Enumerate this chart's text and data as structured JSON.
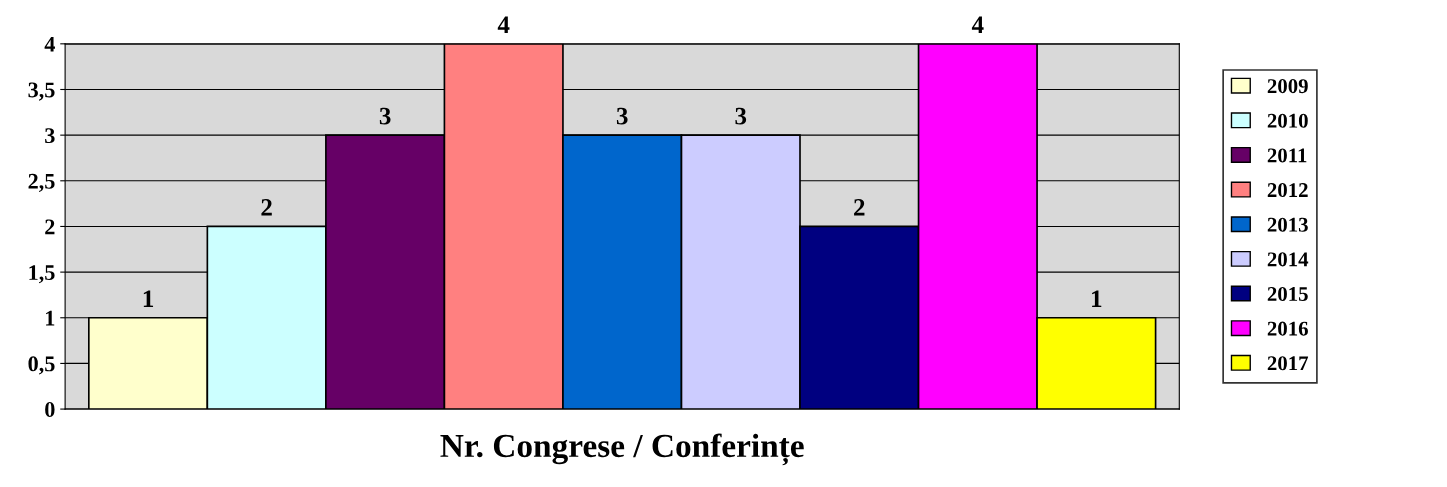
{
  "chart_data": {
    "type": "bar",
    "xlabel": "Nr. Congrese / Conferințe",
    "categories": [
      null
    ],
    "series": [
      {
        "name": "2009",
        "color": "#ffffcc",
        "values": [
          1
        ]
      },
      {
        "name": "2010",
        "color": "#ccffff",
        "values": [
          2
        ]
      },
      {
        "name": "2011",
        "color": "#660066",
        "values": [
          3
        ]
      },
      {
        "name": "2012",
        "color": "#ff8080",
        "values": [
          4
        ]
      },
      {
        "name": "2013",
        "color": "#0066cc",
        "values": [
          3
        ]
      },
      {
        "name": "2014",
        "color": "#ccccff",
        "values": [
          3
        ]
      },
      {
        "name": "2015",
        "color": "#000080",
        "values": [
          2
        ]
      },
      {
        "name": "2016",
        "color": "#ff00ff",
        "values": [
          4
        ]
      },
      {
        "name": "2017",
        "color": "#ffff00",
        "values": [
          1
        ]
      }
    ],
    "ylim": [
      0,
      4
    ],
    "yticks": [
      0,
      {
        "value": 0.5,
        "label": "0,5"
      },
      1,
      {
        "value": 1.5,
        "label": "1,5"
      },
      2,
      {
        "value": 2.5,
        "label": "2,5"
      },
      3,
      {
        "value": 3.5,
        "label": "3,5"
      },
      4
    ],
    "grid": "y",
    "legend": "right",
    "data_labels": true
  }
}
